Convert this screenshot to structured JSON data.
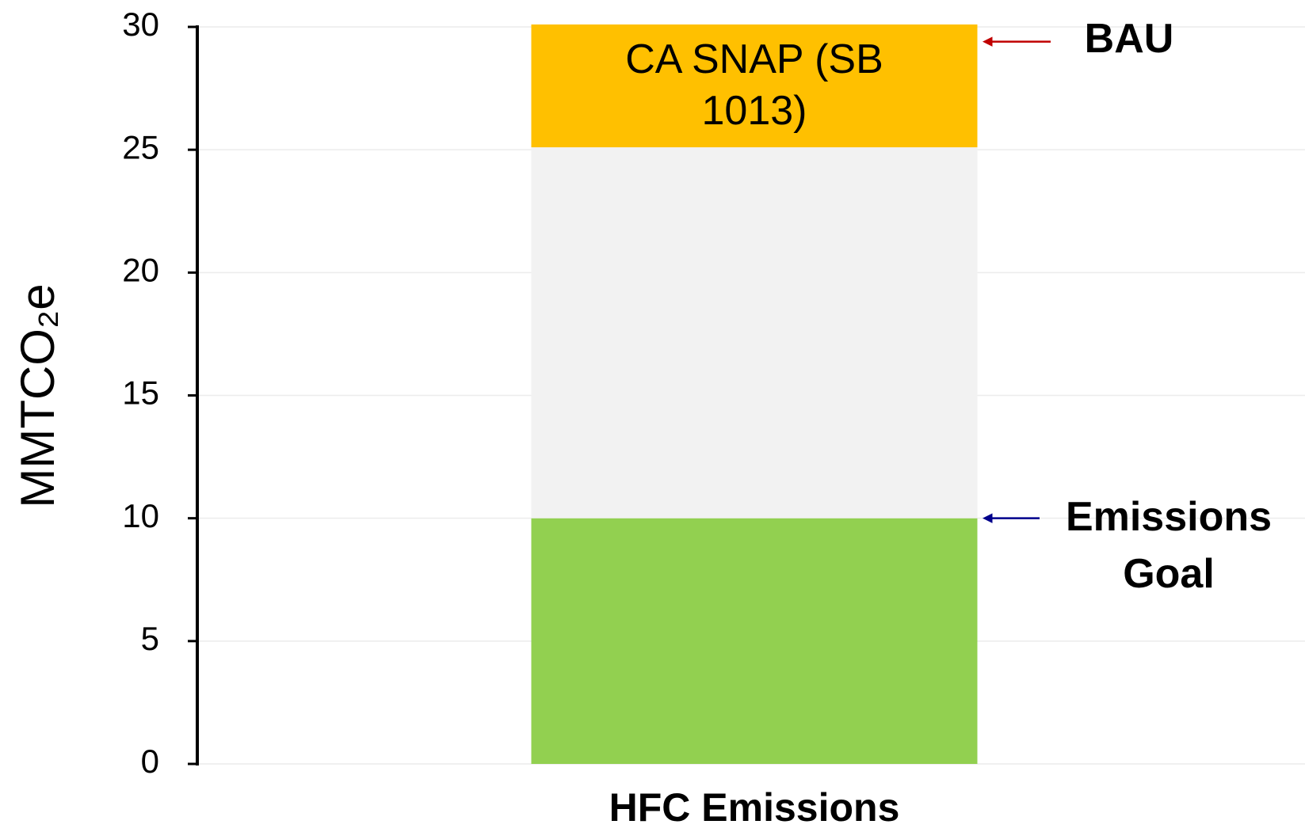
{
  "chart_data": {
    "type": "stacked_bar",
    "y_label": "MMTCO₂e",
    "categories": [
      "HFC Emissions"
    ],
    "series": [
      {
        "color": "#92d050",
        "values": [
          10
        ]
      },
      {
        "color": "#f2f2f2",
        "values": [
          15.1
        ]
      },
      {
        "name": "CA SNAP (SB 1013)",
        "color": "#ffc000",
        "values": [
          5
        ]
      }
    ],
    "ylim": [
      0,
      30
    ],
    "yticks": [
      0,
      5,
      10,
      15,
      20,
      25,
      30
    ],
    "grid": true,
    "annotations": [
      {
        "text": "BAU",
        "y": 29.4,
        "color": "#c00000"
      },
      {
        "text": "Emissions Goal",
        "y": 10,
        "color": "#00008b"
      }
    ]
  }
}
